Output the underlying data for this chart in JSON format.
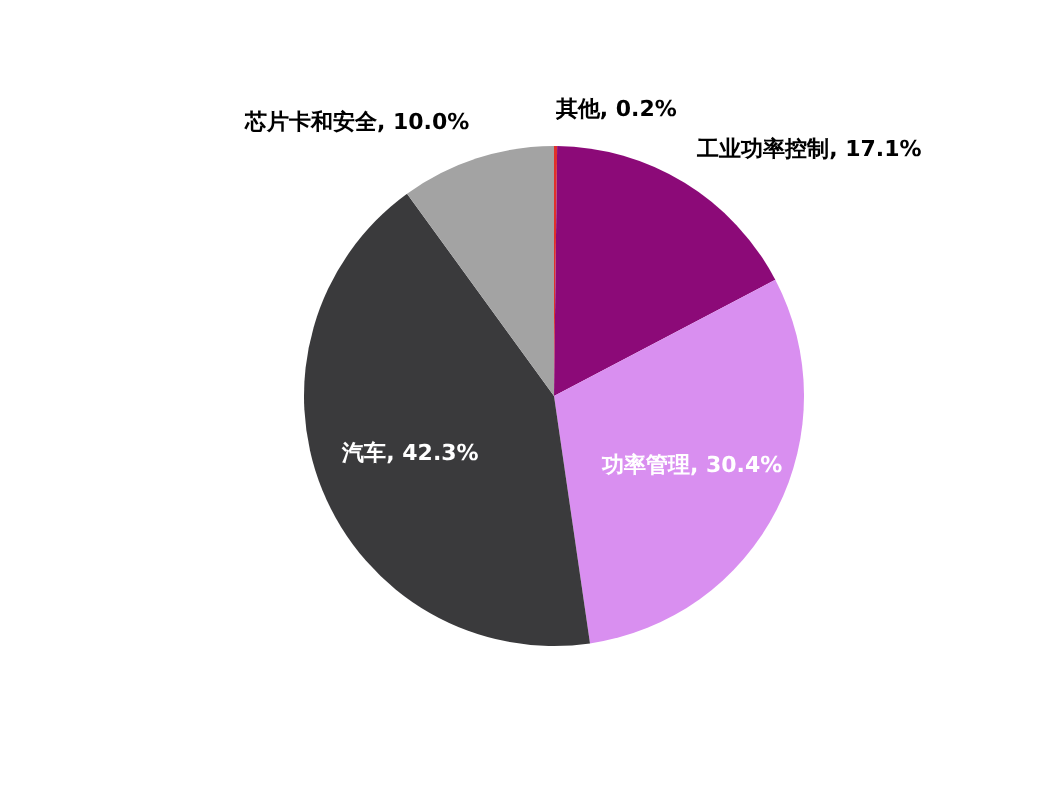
{
  "chart_data": {
    "type": "pie",
    "categories": [
      "其他",
      "工业功率控制",
      "功率管理",
      "汽车",
      "芯片卡和安全"
    ],
    "values": [
      0.2,
      17.1,
      30.4,
      42.3,
      10.0
    ],
    "value_labels": [
      "0.2%",
      "17.1%",
      "30.4%",
      "42.3%",
      "10.0%"
    ],
    "colors": [
      "#e0302a",
      "#8c0a78",
      "#d98ff0",
      "#3a3a3c",
      "#a3a3a3"
    ]
  }
}
